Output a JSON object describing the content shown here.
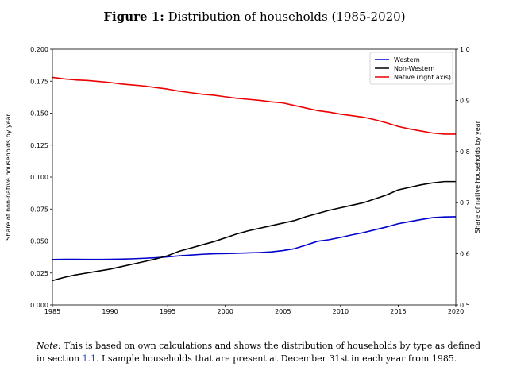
{
  "figure": {
    "label": "Figure 1:",
    "title": "Distribution of households (1985-2020)"
  },
  "note": {
    "lead": "Note:",
    "text_before_ref": " This is based on own calculations and shows the distribution of households by type as defined in section ",
    "ref": "1.1",
    "text_after_ref": ". I sample households that are present at December 31st in each year from 1985."
  },
  "chart_data": {
    "type": "line",
    "ylabel": "Share of non-native households by year",
    "ylabel_right": "Share of native households by year",
    "xlim": [
      1985,
      2020
    ],
    "ylim": [
      0,
      0.2
    ],
    "ylim_right": [
      0.5,
      1.0
    ],
    "x_ticks": [
      1985,
      1990,
      1995,
      2000,
      2005,
      2010,
      2015,
      2020
    ],
    "y_ticks": [
      "0.000",
      "0.025",
      "0.050",
      "0.075",
      "0.100",
      "0.125",
      "0.150",
      "0.175",
      "0.200"
    ],
    "y_ticks_right": [
      "0.5",
      "0.6",
      "0.7",
      "0.8",
      "0.9",
      "1.0"
    ],
    "legend_position": "top-right",
    "grid": false,
    "x": [
      1985,
      1986,
      1987,
      1988,
      1989,
      1990,
      1991,
      1992,
      1993,
      1994,
      1995,
      1996,
      1997,
      1998,
      1999,
      2000,
      2001,
      2002,
      2003,
      2004,
      2005,
      2006,
      2007,
      2008,
      2009,
      2010,
      2011,
      2012,
      2013,
      2014,
      2015,
      2016,
      2017,
      2018,
      2019,
      2020
    ],
    "series": [
      {
        "name": "Western",
        "color": "#0000cc",
        "axis": "left",
        "values": [
          0.0355,
          0.0357,
          0.0357,
          0.0356,
          0.0356,
          0.0357,
          0.0358,
          0.0361,
          0.0365,
          0.0369,
          0.0376,
          0.0384,
          0.039,
          0.0396,
          0.04,
          0.0402,
          0.0404,
          0.0407,
          0.041,
          0.0415,
          0.0425,
          0.044,
          0.0468,
          0.0498,
          0.051,
          0.0528,
          0.0548,
          0.0566,
          0.0588,
          0.061,
          0.0635,
          0.0652,
          0.0668,
          0.0683,
          0.0688,
          0.069
        ]
      },
      {
        "name": "Non-Western",
        "color": "#000000",
        "axis": "left",
        "values": [
          0.019,
          0.0215,
          0.0235,
          0.025,
          0.0265,
          0.028,
          0.03,
          0.032,
          0.034,
          0.036,
          0.0385,
          0.042,
          0.0445,
          0.047,
          0.0495,
          0.0525,
          0.0555,
          0.058,
          0.06,
          0.062,
          0.064,
          0.066,
          0.069,
          0.0715,
          0.074,
          0.076,
          0.078,
          0.08,
          0.083,
          0.086,
          0.09,
          0.092,
          0.094,
          0.0955,
          0.0965,
          0.0965
        ]
      },
      {
        "name": "Native (right axis)",
        "color": "#ee0000",
        "axis": "right",
        "values": [
          0.945,
          0.942,
          0.94,
          0.939,
          0.937,
          0.935,
          0.932,
          0.93,
          0.928,
          0.925,
          0.922,
          0.918,
          0.915,
          0.912,
          0.91,
          0.907,
          0.904,
          0.902,
          0.9,
          0.897,
          0.895,
          0.89,
          0.885,
          0.88,
          0.877,
          0.873,
          0.87,
          0.867,
          0.862,
          0.856,
          0.849,
          0.844,
          0.84,
          0.836,
          0.834,
          0.834
        ]
      }
    ]
  }
}
